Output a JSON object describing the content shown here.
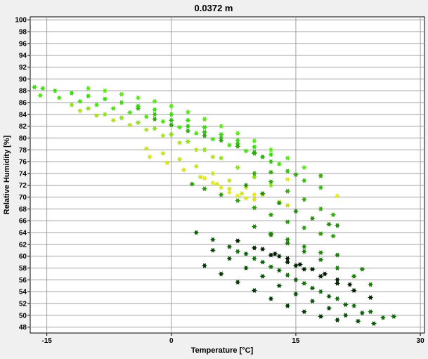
{
  "chart_data": {
    "type": "scatter",
    "title": "0.0372 m",
    "xlabel": "Temperature [°C]",
    "ylabel": "Relative Humidity [%]",
    "xlim": [
      -17,
      30.5
    ],
    "ylim": [
      47,
      100.5
    ],
    "xticks": [
      -15,
      0,
      15,
      30
    ],
    "xtick_labels": [
      "-15",
      "0",
      "15",
      "30"
    ],
    "yticks": [
      48,
      50,
      52,
      54,
      56,
      58,
      60,
      62,
      64,
      66,
      68,
      70,
      72,
      74,
      76,
      78,
      80,
      82,
      84,
      86,
      88,
      90,
      92,
      94,
      96,
      98,
      100
    ],
    "ytick_labels": [
      "48",
      "50",
      "52",
      "54",
      "56",
      "58",
      "60",
      "62",
      "64",
      "66",
      "68",
      "70",
      "72",
      "74",
      "76",
      "78",
      "80",
      "82",
      "84",
      "86",
      "88",
      "90",
      "92",
      "94",
      "96",
      "98",
      "100"
    ],
    "grid": true,
    "legend": "none",
    "marker": "star",
    "series": [
      {
        "color": "#3cdc10",
        "points": [
          [
            -16.5,
            88.6
          ],
          [
            -15.5,
            88.4
          ],
          [
            -14,
            88.0
          ],
          [
            -12,
            87.6
          ],
          [
            -10,
            87.1
          ],
          [
            -8,
            86.6
          ],
          [
            -6,
            86.0
          ],
          [
            -4,
            85.4
          ],
          [
            -2,
            84.8
          ],
          [
            0,
            84.0
          ],
          [
            2,
            83.0
          ],
          [
            4,
            81.8
          ],
          [
            6,
            80.6
          ],
          [
            8,
            79.6
          ],
          [
            10,
            78.5
          ],
          [
            12,
            77.2
          ]
        ]
      },
      {
        "color": "#4ee016",
        "points": [
          [
            -15.8,
            87.2
          ],
          [
            -13.5,
            86.8
          ],
          [
            -11,
            86.2
          ],
          [
            -9,
            85.6
          ],
          [
            -7,
            85.0
          ],
          [
            -5,
            84.3
          ],
          [
            -3,
            83.6
          ],
          [
            -1,
            82.8
          ],
          [
            1,
            81.8
          ],
          [
            3,
            80.8
          ],
          [
            5,
            79.8
          ],
          [
            7,
            78.8
          ],
          [
            9,
            77.8
          ],
          [
            11,
            76.8
          ],
          [
            13,
            75.6
          ]
        ]
      },
      {
        "color": "#5ee81a",
        "points": [
          [
            -10,
            88.4
          ],
          [
            -8,
            88.0
          ],
          [
            -6,
            87.4
          ],
          [
            -4,
            86.8
          ],
          [
            -2,
            86.2
          ],
          [
            0,
            85.4
          ],
          [
            2,
            84.4
          ],
          [
            4,
            83.2
          ],
          [
            6,
            82.0
          ],
          [
            8,
            80.8
          ],
          [
            10,
            79.5
          ],
          [
            12,
            78.0
          ],
          [
            14,
            76.6
          ],
          [
            16,
            75.0
          ],
          [
            18,
            73.6
          ]
        ]
      },
      {
        "color": "#35c012",
        "points": [
          [
            -4,
            85.0
          ],
          [
            -2,
            84.0
          ],
          [
            0,
            83.0
          ],
          [
            2,
            82.0
          ],
          [
            4,
            81.0
          ],
          [
            6,
            80.0
          ],
          [
            8,
            79.0
          ],
          [
            10,
            77.6
          ],
          [
            12,
            76.0
          ],
          [
            14,
            74.4
          ],
          [
            16,
            72.8
          ],
          [
            18,
            71.6
          ]
        ]
      },
      {
        "color": "#2fa810",
        "points": [
          [
            -2,
            83.2
          ],
          [
            0,
            82.2
          ],
          [
            2,
            81.2
          ],
          [
            4,
            80.4
          ],
          [
            6,
            79.6
          ],
          [
            8,
            78.6
          ],
          [
            10,
            77.4
          ],
          [
            11,
            76.8
          ]
        ]
      },
      {
        "color": "#8fe020",
        "points": [
          [
            -12,
            85.6
          ],
          [
            -10,
            85.0
          ],
          [
            -8,
            84.0
          ],
          [
            -6,
            83.4
          ],
          [
            -4,
            82.6
          ],
          [
            -2,
            81.6
          ],
          [
            0,
            80.6
          ],
          [
            2,
            79.4
          ],
          [
            4,
            78.0
          ],
          [
            6,
            76.6
          ],
          [
            8,
            75.0
          ],
          [
            10,
            73.4
          ],
          [
            12,
            72.0
          ]
        ]
      },
      {
        "color": "#b0e02a",
        "points": [
          [
            -11,
            84.6
          ],
          [
            -9,
            83.8
          ],
          [
            -7,
            83.0
          ],
          [
            -5,
            82.2
          ],
          [
            -3,
            81.4
          ],
          [
            -1,
            80.4
          ],
          [
            1,
            79.2
          ],
          [
            3,
            78.0
          ],
          [
            5,
            76.8
          ]
        ]
      },
      {
        "color": "#c8e028",
        "points": [
          [
            -3,
            78.2
          ],
          [
            -1,
            77.4
          ],
          [
            1,
            76.4
          ],
          [
            3,
            75.2
          ],
          [
            5,
            74.0
          ],
          [
            7,
            72.8
          ],
          [
            9,
            71.6
          ],
          [
            11,
            70.4
          ],
          [
            13,
            69.2
          ],
          [
            14,
            68.6
          ]
        ]
      },
      {
        "color": "#d4e424",
        "points": [
          [
            -2.6,
            76.8
          ],
          [
            -0.5,
            75.8
          ],
          [
            1.5,
            74.6
          ],
          [
            3.5,
            73.4
          ],
          [
            5.5,
            72.2
          ],
          [
            7,
            71.4
          ],
          [
            8.5,
            70.6
          ],
          [
            10,
            69.6
          ]
        ]
      },
      {
        "color": "#e2e826",
        "points": [
          [
            4,
            73.2
          ],
          [
            5,
            72.4
          ],
          [
            6,
            71.6
          ],
          [
            7,
            70.8
          ],
          [
            8,
            70.2
          ],
          [
            9,
            69.8
          ],
          [
            10,
            70.4
          ],
          [
            20,
            70.2
          ],
          [
            14,
            73.0
          ]
        ]
      },
      {
        "color": "#2e9e10",
        "points": [
          [
            2.5,
            72.2
          ],
          [
            4,
            71.4
          ],
          [
            6,
            70.4
          ],
          [
            8,
            69.4
          ],
          [
            10,
            68.2
          ],
          [
            12,
            67.0
          ],
          [
            14,
            65.8
          ],
          [
            16,
            64.8
          ],
          [
            18,
            63.8
          ],
          [
            19.5,
            63.4
          ]
        ]
      },
      {
        "color": "#268a0e",
        "points": [
          [
            9,
            72.0
          ],
          [
            11,
            70.6
          ],
          [
            13,
            69.0
          ],
          [
            15,
            67.6
          ],
          [
            17,
            66.4
          ],
          [
            19,
            65.4
          ],
          [
            20,
            65.2
          ],
          [
            18,
            60.6
          ],
          [
            16,
            61.6
          ],
          [
            14,
            62.8
          ],
          [
            12,
            63.8
          ]
        ]
      },
      {
        "color": "#3aa812",
        "points": [
          [
            10,
            74.0
          ],
          [
            12,
            72.6
          ],
          [
            14,
            71.0
          ],
          [
            16,
            69.6
          ],
          [
            18,
            68.0
          ],
          [
            19.5,
            67.0
          ],
          [
            18,
            73.6
          ],
          [
            15,
            73.8
          ],
          [
            12,
            74.2
          ]
        ]
      },
      {
        "color": "#1e7e0c",
        "points": [
          [
            10,
            65.0
          ],
          [
            12,
            63.6
          ],
          [
            14,
            62.2
          ],
          [
            16,
            60.8
          ],
          [
            18,
            59.4
          ],
          [
            20,
            58.0
          ],
          [
            22,
            56.6
          ],
          [
            24,
            55.2
          ],
          [
            23,
            57.8
          ],
          [
            20,
            60.2
          ]
        ]
      },
      {
        "color": "#157010",
        "points": [
          [
            8,
            60.8
          ],
          [
            10,
            59.6
          ],
          [
            12,
            58.2
          ],
          [
            14,
            56.8
          ],
          [
            16,
            55.4
          ],
          [
            18,
            54.0
          ],
          [
            20,
            52.8
          ],
          [
            22,
            51.6
          ],
          [
            24,
            50.6
          ],
          [
            25.5,
            49.6
          ],
          [
            26.8,
            49.8
          ]
        ]
      },
      {
        "color": "#0e5a0c",
        "points": [
          [
            3,
            64.0
          ],
          [
            5,
            62.8
          ],
          [
            7,
            61.6
          ],
          [
            9,
            60.4
          ],
          [
            11,
            59.0
          ],
          [
            13,
            57.6
          ],
          [
            15,
            56.0
          ],
          [
            17,
            54.6
          ],
          [
            19,
            53.2
          ],
          [
            21,
            51.8
          ],
          [
            23,
            50.4
          ],
          [
            24.4,
            48.6
          ]
        ]
      },
      {
        "color": "#0a4a0a",
        "points": [
          [
            5,
            61.0
          ],
          [
            7,
            59.6
          ],
          [
            9,
            58.0
          ],
          [
            11,
            56.6
          ],
          [
            13,
            55.0
          ],
          [
            15,
            53.6
          ],
          [
            17,
            52.4
          ],
          [
            19,
            51.2
          ],
          [
            21,
            50.0
          ],
          [
            22.5,
            49.0
          ]
        ]
      },
      {
        "color": "#063806",
        "points": [
          [
            4,
            58.4
          ],
          [
            6,
            57.0
          ],
          [
            8,
            55.6
          ],
          [
            10,
            54.2
          ],
          [
            12,
            52.8
          ],
          [
            14,
            51.6
          ],
          [
            16,
            50.6
          ],
          [
            18,
            49.8
          ],
          [
            20,
            49.2
          ]
        ]
      },
      {
        "color": "#032403",
        "points": [
          [
            8,
            62.6
          ],
          [
            10,
            61.4
          ],
          [
            12,
            60.2
          ],
          [
            14,
            59.0
          ],
          [
            16,
            57.8
          ],
          [
            18,
            56.6
          ],
          [
            20,
            55.4
          ],
          [
            22,
            54.2
          ],
          [
            24,
            53.0
          ],
          [
            13,
            60.0
          ],
          [
            15,
            58.4
          ]
        ]
      },
      {
        "color": "#051a05",
        "points": [
          [
            11,
            61.2
          ],
          [
            12.5,
            60.4
          ],
          [
            14,
            59.6
          ],
          [
            15.5,
            58.6
          ],
          [
            17,
            57.8
          ],
          [
            18.5,
            57.0
          ],
          [
            20,
            56.0
          ],
          [
            21.5,
            55.2
          ]
        ]
      }
    ]
  }
}
